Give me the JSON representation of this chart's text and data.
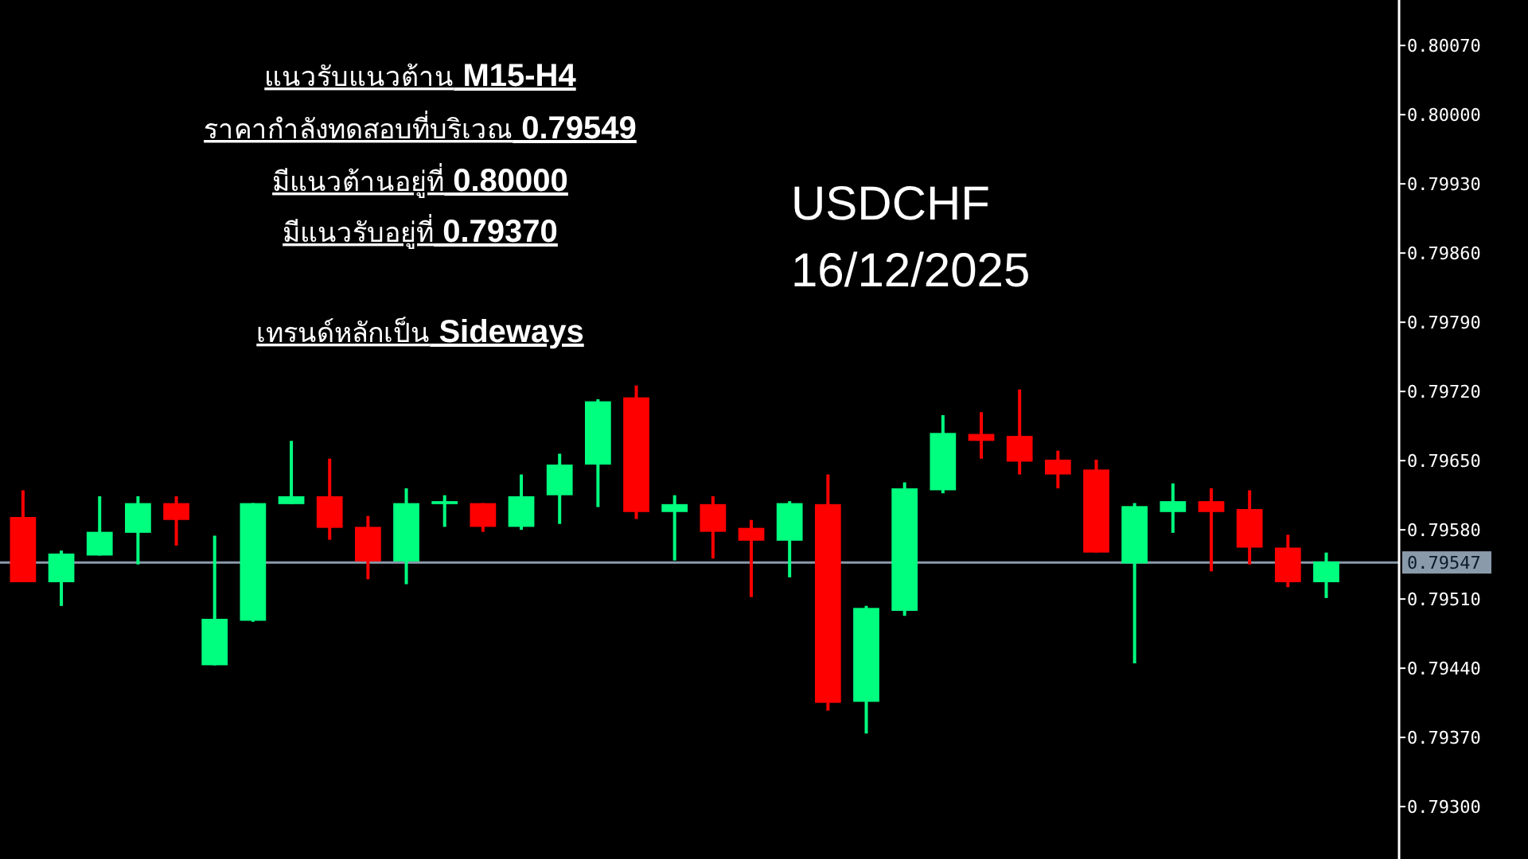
{
  "chart_data": {
    "type": "candlestick",
    "title": "USDCHF",
    "subtitle": "16/12/2025",
    "annotations": [
      "แนวรับแนวต้าน M15-H4",
      "ราคากำลังทดสอบที่บริเวณ 0.79549",
      "มีแนวต้านอยู่ที่  0.80000",
      "มีแนวรับอยู่ที่  0.79370",
      "เทรนด์หลักเป็น Sideways"
    ],
    "categories": [
      null,
      null,
      null,
      null,
      null,
      null,
      null,
      null,
      null,
      null,
      null,
      null,
      null,
      null,
      null,
      null,
      null,
      null,
      null,
      null,
      null,
      null,
      null,
      null,
      null,
      null,
      null,
      null,
      null,
      null,
      null,
      null,
      null,
      null,
      null
    ],
    "ohlc": [
      [
        0.79593,
        0.7962,
        0.79527,
        0.79527
      ],
      [
        0.79527,
        0.79559,
        0.79503,
        0.79556
      ],
      [
        0.79554,
        0.79614,
        0.79554,
        0.79578
      ],
      [
        0.79577,
        0.79614,
        0.79545,
        0.79607
      ],
      [
        0.79607,
        0.79614,
        0.79564,
        0.7959
      ],
      [
        0.79443,
        0.79574,
        0.79443,
        0.7949
      ],
      [
        0.79488,
        0.79607,
        0.79487,
        0.79607
      ],
      [
        0.79606,
        0.7967,
        0.79606,
        0.79614
      ],
      [
        0.79614,
        0.79652,
        0.7957,
        0.79582
      ],
      [
        0.79583,
        0.79594,
        0.7953,
        0.79548
      ],
      [
        0.79548,
        0.79622,
        0.79525,
        0.79607
      ],
      [
        0.79606,
        0.79615,
        0.79583,
        0.79609
      ],
      [
        0.79607,
        0.79607,
        0.79578,
        0.79583
      ],
      [
        0.79583,
        0.79636,
        0.7958,
        0.79614
      ],
      [
        0.79615,
        0.79657,
        0.79586,
        0.79646
      ],
      [
        0.79646,
        0.79712,
        0.79603,
        0.7971
      ],
      [
        0.79714,
        0.79726,
        0.79591,
        0.79598
      ],
      [
        0.79598,
        0.79615,
        0.79549,
        0.79606
      ],
      [
        0.79606,
        0.79614,
        0.79551,
        0.79578
      ],
      [
        0.79582,
        0.7959,
        0.79512,
        0.79569
      ],
      [
        0.79569,
        0.79609,
        0.79532,
        0.79607
      ],
      [
        0.79606,
        0.79636,
        0.79397,
        0.79405
      ],
      [
        0.79406,
        0.79503,
        0.79374,
        0.79501
      ],
      [
        0.79498,
        0.79628,
        0.79493,
        0.79622
      ],
      [
        0.7962,
        0.79696,
        0.79617,
        0.79678
      ],
      [
        0.79677,
        0.79699,
        0.79652,
        0.7967
      ],
      [
        0.79675,
        0.79722,
        0.79636,
        0.79649
      ],
      [
        0.79651,
        0.7966,
        0.79622,
        0.79636
      ],
      [
        0.79641,
        0.79651,
        0.79557,
        0.79557
      ],
      [
        0.79546,
        0.79607,
        0.79445,
        0.79604
      ],
      [
        0.79598,
        0.79627,
        0.79577,
        0.79609
      ],
      [
        0.79609,
        0.79622,
        0.79538,
        0.79598
      ],
      [
        0.79601,
        0.7962,
        0.79545,
        0.79562
      ],
      [
        0.79562,
        0.79575,
        0.79522,
        0.79527
      ],
      [
        0.79527,
        0.79557,
        0.79511,
        0.79548
      ]
    ],
    "colors": [
      "#ff0000",
      "#00ff7f",
      "#00ff7f",
      "#00ff7f",
      "#ff0000",
      "#00ff7f",
      "#00ff7f",
      "#00ff7f",
      "#ff0000",
      "#ff0000",
      "#00ff7f",
      "#00ff7f",
      "#ff0000",
      "#00ff7f",
      "#00ff7f",
      "#00ff7f",
      "#ff0000",
      "#00ff7f",
      "#ff0000",
      "#ff0000",
      "#00ff7f",
      "#ff0000",
      "#00ff7f",
      "#00ff7f",
      "#00ff7f",
      "#ff0000",
      "#ff0000",
      "#ff0000",
      "#ff0000",
      "#00ff7f",
      "#00ff7f",
      "#ff0000",
      "#ff0000",
      "#ff0000",
      "#00ff7f"
    ],
    "ylim": [
      0.79247,
      0.80116
    ],
    "yticks": [
      {
        "value": 0.793,
        "label": "0.79300"
      },
      {
        "value": 0.7937,
        "label": "0.79370"
      },
      {
        "value": 0.7944,
        "label": "0.79440"
      },
      {
        "value": 0.7951,
        "label": "0.79510"
      },
      {
        "value": 0.7958,
        "label": "0.79580"
      },
      {
        "value": 0.7965,
        "label": "0.79650"
      },
      {
        "value": 0.7972,
        "label": "0.79720"
      },
      {
        "value": 0.7979,
        "label": "0.79790"
      },
      {
        "value": 0.7986,
        "label": "0.79860"
      },
      {
        "value": 0.7993,
        "label": "0.79930"
      },
      {
        "value": 0.8,
        "label": "0.80000"
      },
      {
        "value": 0.8007,
        "label": "0.80070"
      }
    ],
    "ref_lines": [
      {
        "axis": "y",
        "value": 0.79547,
        "label": "0.79547",
        "color": "#8a9aab"
      }
    ]
  }
}
